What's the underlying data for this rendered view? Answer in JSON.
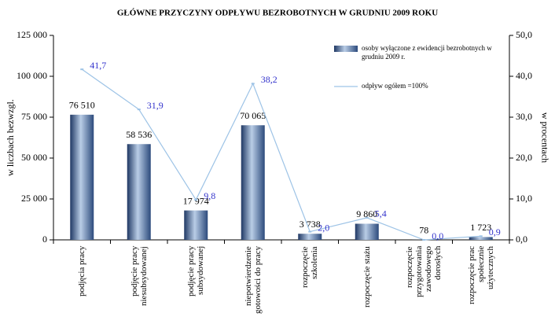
{
  "chart_data": {
    "type": "bar_line",
    "title": "GŁÓWNE  PRZYCZYNY   ODPŁYWU  BEZROBOTNYCH   W GRUDNIU  2009  ROKU",
    "y_label": "w liczbach bezwzgl.",
    "y2_label": "w procentach",
    "categories": [
      "podjęcia pracy",
      "podjęcie pracy niesubsydowanej",
      "podjęcie pracy subsydowanej",
      "niepotwierdzenie gotowości do pracy",
      "rozpoczęcie szkolenia",
      "rozpoczęcie stażu",
      "rozpoczęcie przygotowania zawodowego dorosłych",
      "rozpoczęcie prac społecznie użytecznych"
    ],
    "series": [
      {
        "name": "osoby wyłączone z ewidencji bezrobotnych w grudniu 2009 r.",
        "type": "bar",
        "color": "#4f6fa8",
        "values": [
          76510,
          58536,
          17974,
          70065,
          3738,
          9860,
          78,
          1723
        ],
        "value_labels": [
          "76 510",
          "58 536",
          "17 974",
          "70 065",
          "3 738",
          "9 860",
          "78",
          "1 723"
        ]
      },
      {
        "name": "odpływ ogółem =100%",
        "type": "line",
        "axis": "y2",
        "color": "#9dc3e6",
        "label_color": "#3333cc",
        "values": [
          41.7,
          31.9,
          9.8,
          38.2,
          2.0,
          5.4,
          0.0,
          0.9
        ],
        "value_labels": [
          "41,7",
          "31,9",
          "9,8",
          "38,2",
          "2,0",
          "5,4",
          "0,0",
          "0,9"
        ]
      }
    ],
    "ylim": [
      0,
      125000
    ],
    "yticks": [
      0,
      {
        "value": 25000,
        "label": "25 000"
      },
      {
        "value": 50000,
        "label": "50 000"
      },
      {
        "value": 75000,
        "label": "75 000"
      },
      {
        "value": 100000,
        "label": "100 000"
      },
      {
        "value": 125000,
        "label": "125 000"
      }
    ],
    "y2lim": [
      0,
      50
    ],
    "y2ticks": [
      {
        "value": 0,
        "label": "0,0"
      },
      {
        "value": 10,
        "label": "10,0"
      },
      {
        "value": 20,
        "label": "20,0"
      },
      {
        "value": 30,
        "label": "30,0"
      },
      {
        "value": 40,
        "label": "40,0"
      },
      {
        "value": 50,
        "label": "50,0"
      }
    ]
  }
}
